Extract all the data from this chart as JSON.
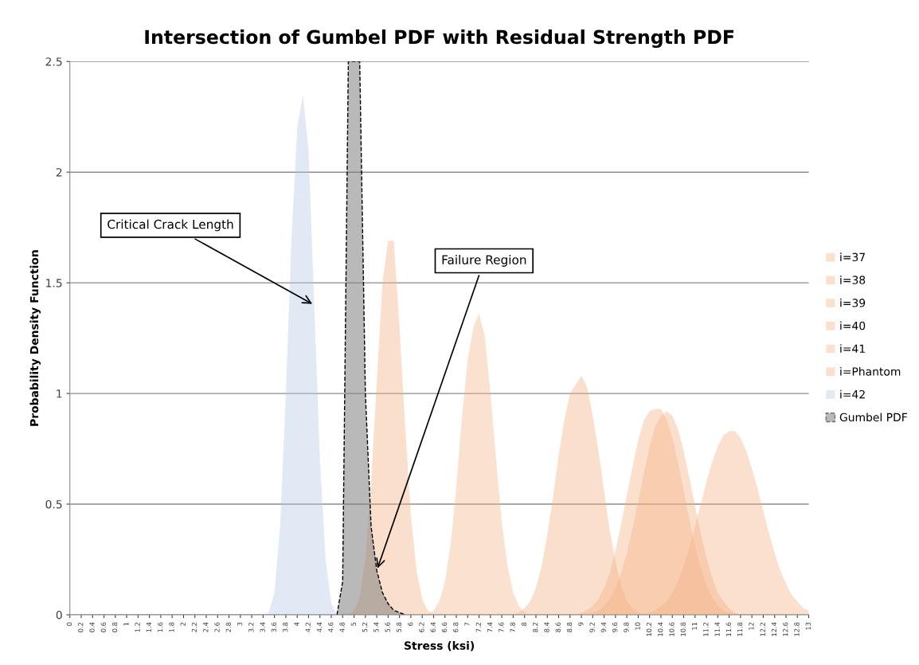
{
  "chart_data": {
    "type": "area",
    "title": "Intersection of Gumbel PDF with Residual Strength PDF",
    "xlabel": "Stress (ksi)",
    "ylabel": "Probability Density Function",
    "xlim": [
      0,
      13
    ],
    "ylim": [
      0,
      2.5
    ],
    "yticks": [
      0,
      0.5,
      1,
      1.5,
      2,
      2.5
    ],
    "xticks": [
      0,
      0.2,
      0.4,
      0.6,
      0.8,
      1,
      1.2,
      1.4,
      1.6,
      1.8,
      2,
      2.2,
      2.4,
      2.6,
      2.8,
      3,
      3.2,
      3.4,
      3.6,
      3.8,
      4,
      4.2,
      4.4,
      4.6,
      4.8,
      5,
      5.2,
      5.4,
      5.6,
      5.8,
      6,
      6.2,
      6.4,
      6.6,
      6.8,
      7,
      7.2,
      7.4,
      7.6,
      7.8,
      8,
      8.2,
      8.4,
      8.6,
      8.8,
      9,
      9.2,
      9.4,
      9.6,
      9.8,
      10,
      10.2,
      10.4,
      10.6,
      10.8,
      11,
      11.2,
      11.4,
      11.6,
      11.8,
      12,
      12.2,
      12.4,
      12.6,
      12.8,
      13
    ],
    "grid": "y",
    "legend": "right",
    "annotations": [
      {
        "text": "Critical Crack Length",
        "x": 4.3,
        "y": 1.4
      },
      {
        "text": "Failure Region",
        "x": 5.4,
        "y": 0.2
      }
    ],
    "series": [
      {
        "name": "i=37",
        "color": "#f4b183",
        "x": [
          10.1,
          10.2,
          10.3,
          10.4,
          10.5,
          10.6,
          10.7,
          10.8,
          10.9,
          11.0,
          11.1,
          11.2,
          11.3,
          11.4,
          11.5,
          11.6,
          11.7,
          11.8,
          11.9,
          12.0,
          12.1,
          12.2,
          12.3,
          12.4,
          12.5,
          12.6,
          12.7,
          12.8,
          12.9,
          13.0
        ],
        "values": [
          0,
          0.01,
          0.02,
          0.04,
          0.06,
          0.1,
          0.15,
          0.22,
          0.3,
          0.4,
          0.5,
          0.6,
          0.69,
          0.76,
          0.81,
          0.83,
          0.83,
          0.8,
          0.74,
          0.66,
          0.57,
          0.47,
          0.37,
          0.28,
          0.2,
          0.14,
          0.09,
          0.06,
          0.03,
          0.02
        ]
      },
      {
        "name": "i=38",
        "color": "#f3b083",
        "x": [
          9.1,
          9.2,
          9.3,
          9.4,
          9.5,
          9.6,
          9.7,
          9.8,
          9.9,
          10.0,
          10.1,
          10.2,
          10.3,
          10.4,
          10.5,
          10.6,
          10.7,
          10.8,
          10.9,
          11.0,
          11.1,
          11.2,
          11.3,
          11.4,
          11.5,
          11.6,
          11.7,
          11.8
        ],
        "values": [
          0,
          0.01,
          0.02,
          0.04,
          0.07,
          0.12,
          0.19,
          0.28,
          0.39,
          0.51,
          0.64,
          0.76,
          0.85,
          0.9,
          0.92,
          0.9,
          0.84,
          0.74,
          0.62,
          0.49,
          0.37,
          0.26,
          0.17,
          0.1,
          0.06,
          0.03,
          0.01,
          0
        ]
      },
      {
        "name": "i=39",
        "color": "#f5b285",
        "x": [
          8.9,
          9.0,
          9.1,
          9.2,
          9.3,
          9.4,
          9.5,
          9.6,
          9.7,
          9.8,
          9.9,
          10.0,
          10.1,
          10.2,
          10.3,
          10.4,
          10.5,
          10.6,
          10.7,
          10.8,
          10.9,
          11.0,
          11.1,
          11.2,
          11.3,
          11.4,
          11.5,
          11.6,
          11.7
        ],
        "values": [
          0,
          0.01,
          0.02,
          0.04,
          0.07,
          0.12,
          0.19,
          0.29,
          0.41,
          0.54,
          0.67,
          0.79,
          0.88,
          0.92,
          0.93,
          0.93,
          0.88,
          0.8,
          0.69,
          0.56,
          0.43,
          0.31,
          0.21,
          0.13,
          0.08,
          0.04,
          0.02,
          0.01,
          0
        ]
      },
      {
        "name": "i=40",
        "color": "#f2af81",
        "x": [
          7.8,
          7.9,
          8.0,
          8.1,
          8.2,
          8.3,
          8.4,
          8.5,
          8.6,
          8.7,
          8.8,
          8.9,
          9.0,
          9.1,
          9.2,
          9.3,
          9.4,
          9.5,
          9.6,
          9.7,
          9.8,
          9.9,
          10.0,
          10.1
        ],
        "values": [
          0,
          0.01,
          0.03,
          0.06,
          0.12,
          0.22,
          0.36,
          0.53,
          0.72,
          0.88,
          1.0,
          1.04,
          1.08,
          1.03,
          0.9,
          0.74,
          0.56,
          0.38,
          0.24,
          0.13,
          0.06,
          0.03,
          0.01,
          0
        ]
      },
      {
        "name": "i=41",
        "color": "#f6b386",
        "x": [
          6.3,
          6.4,
          6.5,
          6.6,
          6.7,
          6.8,
          6.9,
          7.0,
          7.1,
          7.2,
          7.3,
          7.4,
          7.5,
          7.6,
          7.7,
          7.8,
          7.9,
          8.0,
          8.1
        ],
        "values": [
          0,
          0.02,
          0.06,
          0.15,
          0.32,
          0.58,
          0.9,
          1.15,
          1.3,
          1.36,
          1.26,
          1.0,
          0.7,
          0.42,
          0.22,
          0.1,
          0.04,
          0.01,
          0
        ]
      },
      {
        "name": "i=Phantom",
        "color": "#f4b081",
        "x": [
          4.9,
          5.0,
          5.1,
          5.2,
          5.3,
          5.4,
          5.5,
          5.6,
          5.7,
          5.8,
          5.9,
          6.0,
          6.1,
          6.2,
          6.3,
          6.4
        ],
        "values": [
          0,
          0.02,
          0.08,
          0.25,
          0.6,
          1.05,
          1.5,
          1.69,
          1.69,
          1.3,
          0.85,
          0.45,
          0.2,
          0.07,
          0.02,
          0
        ]
      },
      {
        "name": "i=42",
        "color": "#b4c7e7",
        "x": [
          3.4,
          3.5,
          3.6,
          3.7,
          3.8,
          3.9,
          4.0,
          4.1,
          4.2,
          4.3,
          4.4,
          4.5,
          4.6,
          4.7
        ],
        "values": [
          0,
          0.01,
          0.1,
          0.4,
          1.0,
          1.7,
          2.2,
          2.35,
          2.1,
          1.4,
          0.7,
          0.25,
          0.05,
          0
        ]
      },
      {
        "name": "Gumbel PDF",
        "color": "#808080",
        "line_style": "dashed",
        "x": [
          4.7,
          4.8,
          4.9,
          5.0,
          5.1,
          5.2,
          5.3,
          5.4,
          5.5,
          5.6,
          5.7,
          5.8,
          5.9
        ],
        "values": [
          0,
          0.15,
          2.5,
          2.5,
          2.5,
          1.0,
          0.4,
          0.2,
          0.1,
          0.05,
          0.02,
          0.01,
          0
        ]
      }
    ]
  }
}
